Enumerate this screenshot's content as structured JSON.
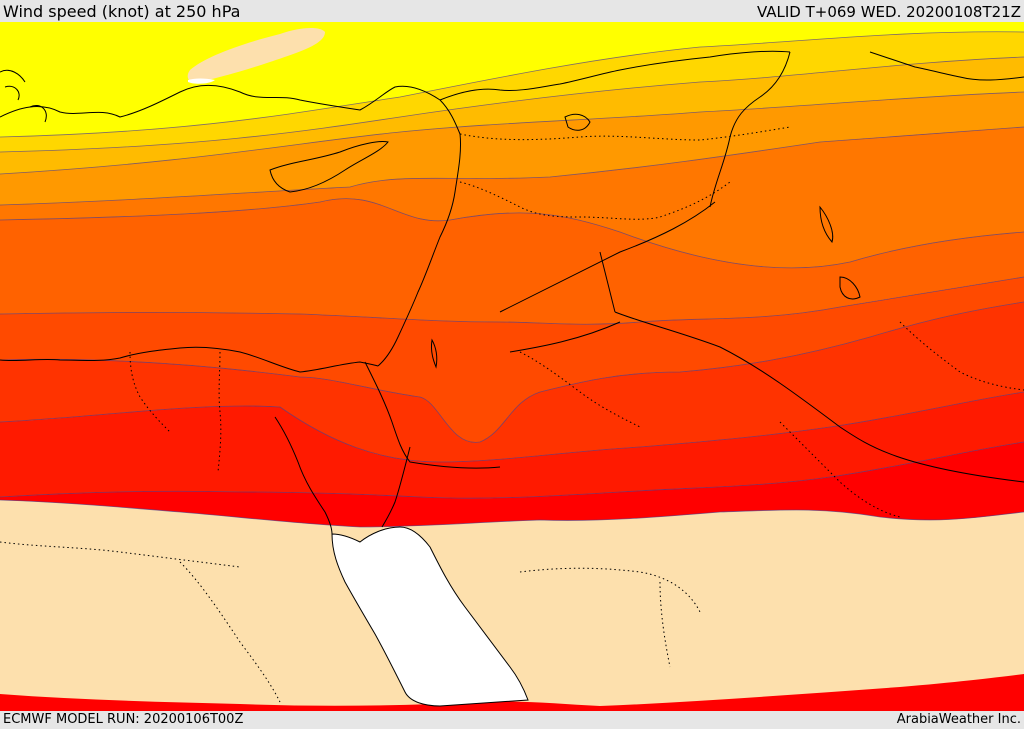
{
  "header": {
    "title": "Wind speed (knot) at 250 hPa",
    "valid_time": "VALID T+069 WED. 20200108T21Z"
  },
  "footer": {
    "model_run": "ECMWF MODEL RUN: 20200106T00Z",
    "credit": "ArabiaWeather Inc."
  },
  "colors": {
    "band_light": "#fde0ad",
    "band_yellow": "#ffff00",
    "band_gold": "#ffd700",
    "band_amber": "#ffbb00",
    "band_orange_light": "#ff9900",
    "band_orange": "#ff7700",
    "band_orange_dark": "#ff6200",
    "band_red_orange": "#ff4a00",
    "band_red_light": "#ff3300",
    "band_red": "#ff1a00",
    "band_red_deep": "#ff0000",
    "sea_white": "#ffffff"
  }
}
